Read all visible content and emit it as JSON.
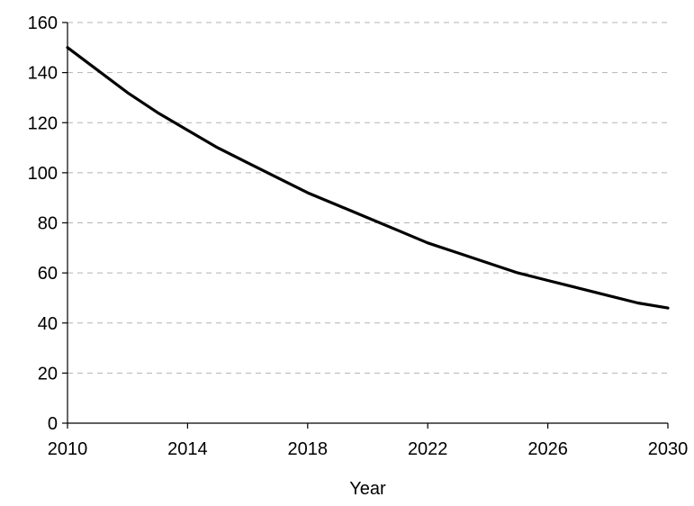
{
  "chart_data": {
    "type": "line",
    "title": "",
    "xlabel": "Year",
    "ylabel": "",
    "xlim": [
      2010,
      2030
    ],
    "ylim": [
      0,
      160
    ],
    "x_ticks": [
      2010,
      2014,
      2018,
      2022,
      2026,
      2030
    ],
    "y_ticks": [
      0,
      20,
      40,
      60,
      80,
      100,
      120,
      140,
      160
    ],
    "grid": "horizontal dashed",
    "legend": "none",
    "series": [
      {
        "color": "#000000",
        "x": [
          2010,
          2011,
          2012,
          2013,
          2014,
          2015,
          2016,
          2017,
          2018,
          2019,
          2020,
          2021,
          2022,
          2023,
          2024,
          2025,
          2026,
          2027,
          2028,
          2029,
          2030
        ],
        "values": [
          150,
          141,
          132,
          124,
          117,
          110,
          104,
          98,
          92,
          87,
          82,
          77,
          72,
          68,
          64,
          60,
          57,
          54,
          51,
          48,
          46
        ]
      }
    ]
  }
}
